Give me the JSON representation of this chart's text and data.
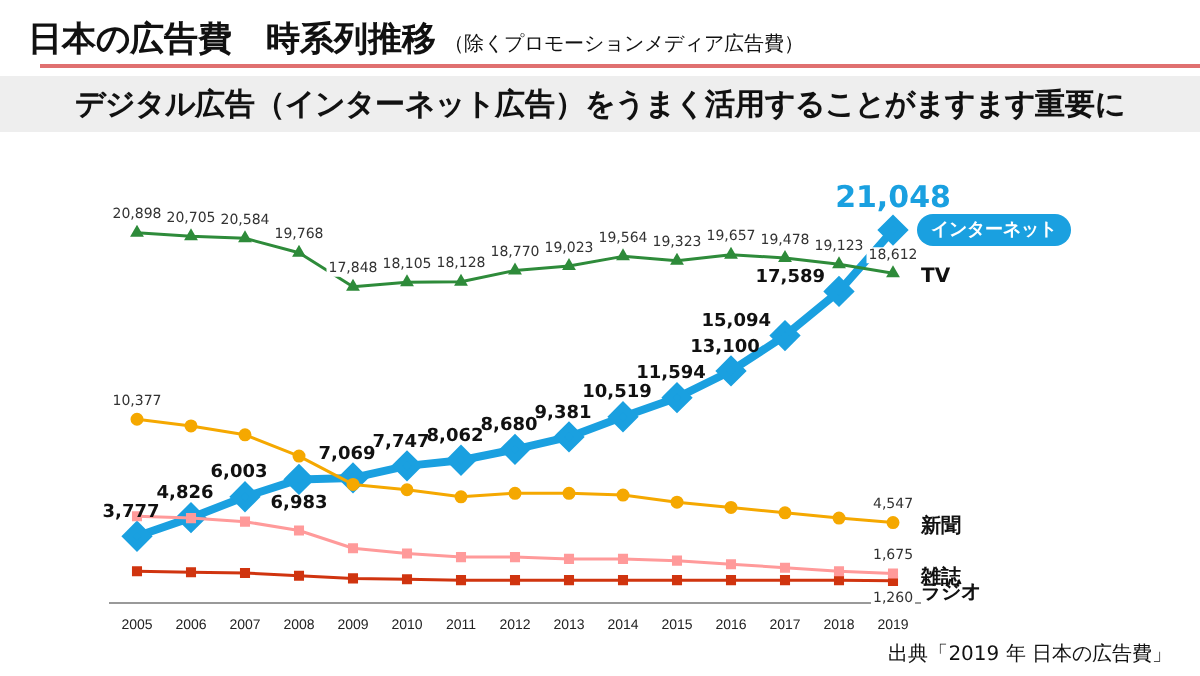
{
  "chart_data": {
    "type": "line",
    "title": "日本の広告費　時系列推移",
    "subtitle": "（除くプロモーションメディア広告費）",
    "annotations": [
      "デジタル広告（インターネット広告）をうまく活用することがますます重要に",
      "出典「2019 年 日本の広告費」"
    ],
    "categories": [
      "2005",
      "2006",
      "2007",
      "2008",
      "2009",
      "2010",
      "2011",
      "2012",
      "2013",
      "2014",
      "2015",
      "2016",
      "2017",
      "2018",
      "2019"
    ],
    "tick_labels": "x",
    "legend": false,
    "grid": false,
    "series": [
      {
        "name": "インターネット",
        "color": "#1aa0e0",
        "marker": "diamond",
        "values": [
          3777,
          4826,
          6003,
          6983,
          7069,
          7747,
          8062,
          8680,
          9381,
          10519,
          11594,
          13100,
          15094,
          17589,
          21048
        ],
        "value_labels": [
          "3,777",
          "4,826",
          "6,003",
          "6,983",
          "7,069",
          "7,747",
          "8,062",
          "8,680",
          "9,381",
          "10,519",
          "11,594",
          "13,100",
          "15,094",
          "17,589",
          "21,048"
        ]
      },
      {
        "name": "TV",
        "color": "#2e8b3a",
        "marker": "triangle",
        "values": [
          20898,
          20705,
          20584,
          19768,
          17848,
          18105,
          18128,
          18770,
          19023,
          19564,
          19323,
          19657,
          19478,
          19123,
          18612
        ],
        "value_labels": [
          "20,898",
          "20,705",
          "20,584",
          "19,768",
          "17,848",
          "18,105",
          "18,128",
          "18,770",
          "19,023",
          "19,564",
          "19,323",
          "19,657",
          "19,478",
          "19,123",
          "18,612"
        ]
      },
      {
        "name": "新聞",
        "color": "#f5a800",
        "marker": "circle",
        "values": [
          10377,
          10000,
          9500,
          8300,
          6700,
          6400,
          6000,
          6200,
          6200,
          6100,
          5700,
          5400,
          5100,
          4800,
          4547
        ],
        "value_labels": [
          "10,377",
          null,
          null,
          null,
          null,
          null,
          null,
          null,
          null,
          null,
          null,
          null,
          null,
          null,
          "4,547"
        ]
      },
      {
        "name": "雑誌",
        "color": "#ff9a9a",
        "marker": "square",
        "values": [
          4900,
          4800,
          4600,
          4100,
          3100,
          2800,
          2600,
          2600,
          2500,
          2500,
          2400,
          2200,
          2000,
          1800,
          1675
        ],
        "value_labels": [
          null,
          null,
          null,
          null,
          null,
          null,
          null,
          null,
          null,
          null,
          null,
          null,
          null,
          null,
          "1,675"
        ]
      },
      {
        "name": "ラジオ",
        "color": "#d0340f",
        "marker": "square",
        "values": [
          1800,
          1750,
          1700,
          1550,
          1400,
          1350,
          1300,
          1300,
          1300,
          1300,
          1300,
          1300,
          1300,
          1300,
          1260
        ],
        "value_labels": [
          null,
          null,
          null,
          null,
          null,
          null,
          null,
          null,
          null,
          null,
          null,
          null,
          null,
          null,
          "1,260"
        ]
      }
    ]
  }
}
